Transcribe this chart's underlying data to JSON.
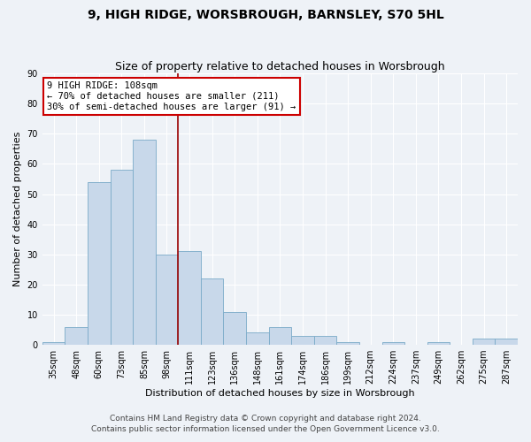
{
  "title1": "9, HIGH RIDGE, WORSBROUGH, BARNSLEY, S70 5HL",
  "title2": "Size of property relative to detached houses in Worsbrough",
  "xlabel": "Distribution of detached houses by size in Worsbrough",
  "ylabel": "Number of detached properties",
  "annotation_title": "9 HIGH RIDGE: 108sqm",
  "annotation_line1": "← 70% of detached houses are smaller (211)",
  "annotation_line2": "30% of semi-detached houses are larger (91) →",
  "categories": [
    "35sqm",
    "48sqm",
    "60sqm",
    "73sqm",
    "85sqm",
    "98sqm",
    "111sqm",
    "123sqm",
    "136sqm",
    "148sqm",
    "161sqm",
    "174sqm",
    "186sqm",
    "199sqm",
    "212sqm",
    "224sqm",
    "237sqm",
    "249sqm",
    "262sqm",
    "275sqm",
    "287sqm"
  ],
  "values": [
    1,
    6,
    54,
    58,
    68,
    30,
    31,
    22,
    11,
    4,
    6,
    3,
    3,
    1,
    0,
    1,
    0,
    1,
    0,
    2,
    2
  ],
  "bar_color": "#c8d8ea",
  "bar_edge_color": "#7aaac8",
  "marker_color": "#990000",
  "ylim": [
    0,
    90
  ],
  "yticks": [
    0,
    10,
    20,
    30,
    40,
    50,
    60,
    70,
    80,
    90
  ],
  "annotation_box_color": "#ffffff",
  "annotation_box_edge": "#cc0000",
  "footer1": "Contains HM Land Registry data © Crown copyright and database right 2024.",
  "footer2": "Contains public sector information licensed under the Open Government Licence v3.0.",
  "bg_color": "#eef2f7",
  "grid_color": "#ffffff",
  "title_fontsize": 10,
  "subtitle_fontsize": 9,
  "axis_label_fontsize": 8,
  "tick_fontsize": 7,
  "annotation_fontsize": 7.5,
  "footer_fontsize": 6.5
}
